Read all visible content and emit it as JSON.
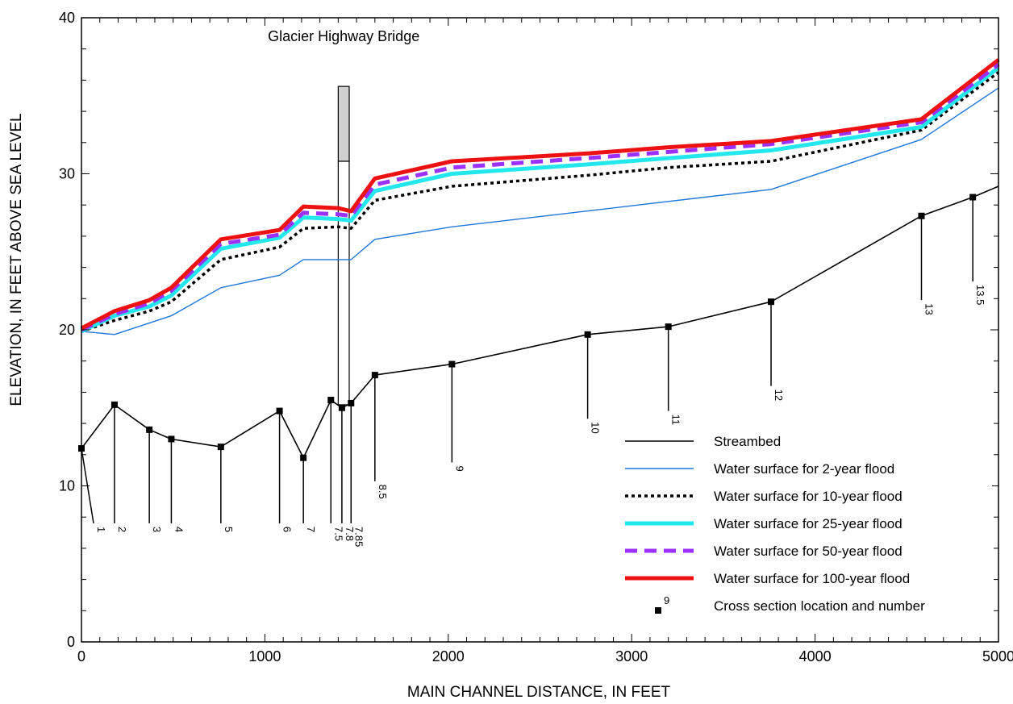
{
  "chart_data": {
    "type": "line",
    "title": "",
    "xlabel": "MAIN CHANNEL DISTANCE, IN FEET",
    "ylabel": "ELEVATION, IN FEET ABOVE SEA LEVEL",
    "xlim": [
      0,
      5000
    ],
    "ylim": [
      0,
      40
    ],
    "x_ticks": [
      0,
      1000,
      2000,
      3000,
      4000,
      5000
    ],
    "y_ticks": [
      0,
      10,
      20,
      30,
      40
    ],
    "grid": false,
    "legend_position": "bottom-right",
    "annotation": {
      "text": "Glacier Highway Bridge",
      "x": 1430,
      "y": 38.5
    },
    "bridge": {
      "x_start": 1400,
      "x_end": 1460,
      "deck_bottom": 30.8,
      "deck_top": 35.6,
      "base": 15.2
    },
    "series": [
      {
        "name": "Streambed",
        "color": "#000000",
        "style": "solid",
        "points": [
          [
            0,
            12.4
          ],
          [
            180,
            15.2
          ],
          [
            370,
            13.6
          ],
          [
            490,
            13.0
          ],
          [
            760,
            12.5
          ],
          [
            1080,
            14.8
          ],
          [
            1210,
            11.8
          ],
          [
            1360,
            15.5
          ],
          [
            1420,
            15.0
          ],
          [
            1470,
            15.3
          ],
          [
            1600,
            17.1
          ],
          [
            2020,
            17.8
          ],
          [
            2760,
            19.7
          ],
          [
            3200,
            20.2
          ],
          [
            3760,
            21.8
          ],
          [
            4580,
            27.3
          ],
          [
            4860,
            28.5
          ],
          [
            5000,
            29.2
          ]
        ]
      },
      {
        "name": "Water surface for 2-year flood",
        "color": "#1f77d9",
        "style": "solid",
        "points": [
          [
            0,
            19.9
          ],
          [
            180,
            19.7
          ],
          [
            490,
            20.9
          ],
          [
            760,
            22.7
          ],
          [
            1080,
            23.5
          ],
          [
            1210,
            24.5
          ],
          [
            1470,
            24.5
          ],
          [
            1600,
            25.8
          ],
          [
            2020,
            26.6
          ],
          [
            3760,
            29.0
          ],
          [
            4580,
            32.2
          ],
          [
            5000,
            35.5
          ]
        ]
      },
      {
        "name": "Water surface for 10-year flood",
        "color": "#000000",
        "style": "dotted",
        "points": [
          [
            0,
            19.9
          ],
          [
            180,
            20.6
          ],
          [
            370,
            21.2
          ],
          [
            490,
            21.8
          ],
          [
            760,
            24.5
          ],
          [
            1080,
            25.3
          ],
          [
            1210,
            26.5
          ],
          [
            1400,
            26.6
          ],
          [
            1470,
            26.5
          ],
          [
            1600,
            28.3
          ],
          [
            2020,
            29.2
          ],
          [
            2760,
            29.9
          ],
          [
            3200,
            30.4
          ],
          [
            3760,
            30.8
          ],
          [
            4580,
            32.8
          ],
          [
            5000,
            36.5
          ]
        ]
      },
      {
        "name": "Water surface for 25-year flood",
        "color": "#22e8ee",
        "style": "solid-thick",
        "points": [
          [
            0,
            19.9
          ],
          [
            180,
            20.9
          ],
          [
            370,
            21.5
          ],
          [
            490,
            22.2
          ],
          [
            760,
            25.2
          ],
          [
            1080,
            25.9
          ],
          [
            1210,
            27.2
          ],
          [
            1400,
            27.1
          ],
          [
            1470,
            27.0
          ],
          [
            1600,
            28.9
          ],
          [
            2020,
            30.0
          ],
          [
            2760,
            30.6
          ],
          [
            3200,
            31.0
          ],
          [
            3760,
            31.5
          ],
          [
            4580,
            33.0
          ],
          [
            5000,
            36.8
          ]
        ]
      },
      {
        "name": "Water surface for 50-year flood",
        "color": "#9b30ff",
        "style": "dashed",
        "points": [
          [
            0,
            20.0
          ],
          [
            180,
            21.0
          ],
          [
            370,
            21.7
          ],
          [
            490,
            22.5
          ],
          [
            760,
            25.5
          ],
          [
            1080,
            26.1
          ],
          [
            1210,
            27.5
          ],
          [
            1400,
            27.4
          ],
          [
            1470,
            27.3
          ],
          [
            1600,
            29.3
          ],
          [
            2020,
            30.4
          ],
          [
            2760,
            31.0
          ],
          [
            3200,
            31.4
          ],
          [
            3760,
            31.9
          ],
          [
            4580,
            33.3
          ],
          [
            5000,
            37.0
          ]
        ]
      },
      {
        "name": "Water surface for 100-year flood",
        "color": "#ee1111",
        "style": "solid-thick",
        "points": [
          [
            0,
            20.1
          ],
          [
            180,
            21.2
          ],
          [
            370,
            21.9
          ],
          [
            490,
            22.7
          ],
          [
            760,
            25.8
          ],
          [
            1080,
            26.4
          ],
          [
            1210,
            27.9
          ],
          [
            1400,
            27.8
          ],
          [
            1470,
            27.6
          ],
          [
            1600,
            29.7
          ],
          [
            2020,
            30.8
          ],
          [
            2760,
            31.3
          ],
          [
            3200,
            31.7
          ],
          [
            3760,
            32.1
          ],
          [
            4580,
            33.5
          ],
          [
            5000,
            37.3
          ]
        ]
      }
    ],
    "cross_sections": [
      {
        "label": "1",
        "x": 0,
        "y": 12.4
      },
      {
        "label": "2",
        "x": 180,
        "y": 15.2
      },
      {
        "label": "3",
        "x": 370,
        "y": 13.6
      },
      {
        "label": "4",
        "x": 490,
        "y": 13.0
      },
      {
        "label": "5",
        "x": 760,
        "y": 12.5
      },
      {
        "label": "6",
        "x": 1080,
        "y": 14.8
      },
      {
        "label": "7",
        "x": 1210,
        "y": 11.8
      },
      {
        "label": "7.5",
        "x": 1360,
        "y": 15.5
      },
      {
        "label": "7.8",
        "x": 1420,
        "y": 15.0
      },
      {
        "label": "7.85",
        "x": 1470,
        "y": 15.3
      },
      {
        "label": "8.5",
        "x": 1600,
        "y": 17.1
      },
      {
        "label": "9",
        "x": 2020,
        "y": 17.8
      },
      {
        "label": "10",
        "x": 2760,
        "y": 19.7
      },
      {
        "label": "11",
        "x": 3200,
        "y": 20.2
      },
      {
        "label": "12",
        "x": 3760,
        "y": 21.8
      },
      {
        "label": "13",
        "x": 4580,
        "y": 27.3
      },
      {
        "label": "13.5",
        "x": 4860,
        "y": 28.5
      }
    ],
    "legend": {
      "entries": [
        "Streambed",
        "Water surface for 2-year flood",
        "Water surface for 10-year flood",
        "Water surface for 25-year flood",
        "Water surface for 50-year flood",
        "Water surface for 100-year flood",
        "Cross section location and number"
      ],
      "marker_example_label": "9"
    }
  }
}
